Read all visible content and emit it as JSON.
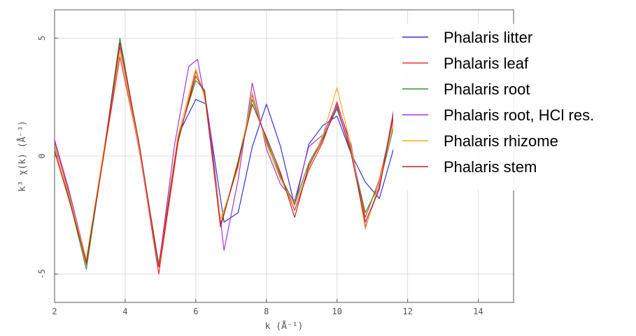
{
  "chart_data": {
    "type": "line",
    "xlabel": "k (Å⁻¹)",
    "ylabel": "k³ χ(k) (Å⁻³)",
    "xlim": [
      2,
      15
    ],
    "ylim": [
      -6.2,
      6.2
    ],
    "x_ticks": [
      "2",
      "4",
      "6",
      "8",
      "10",
      "12",
      "14"
    ],
    "x_tick_values": [
      2,
      4,
      6,
      8,
      10,
      12,
      14
    ],
    "y_ticks": [
      "5",
      "0",
      "-5"
    ],
    "y_tick_values": [
      5,
      0,
      -5
    ],
    "grid": true,
    "legend_position": "top-right",
    "series": [
      {
        "name": "Phalaris litter",
        "color": "#3333dd",
        "x": [
          2.0,
          2.4,
          2.9,
          3.4,
          3.85,
          4.4,
          4.95,
          5.5,
          6.0,
          6.3,
          6.8,
          7.2,
          7.6,
          8.0,
          8.4,
          8.8,
          9.2,
          9.6,
          10.0,
          10.4,
          10.8,
          11.2,
          11.6
        ],
        "y": [
          0.3,
          -1.6,
          -4.5,
          0.2,
          4.5,
          0.4,
          -4.6,
          0.9,
          2.4,
          2.2,
          -2.8,
          -2.4,
          0.4,
          2.2,
          0.4,
          -2.1,
          0.5,
          1.3,
          1.7,
          0.1,
          -1.1,
          -1.8,
          0.3
        ]
      },
      {
        "name": "Phalaris leaf",
        "color": "#ee3333",
        "x": [
          2.0,
          2.4,
          2.9,
          3.4,
          3.85,
          4.4,
          4.95,
          5.5,
          6.0,
          6.25,
          6.7,
          7.2,
          7.6,
          8.0,
          8.4,
          8.8,
          9.2,
          9.6,
          10.0,
          10.4,
          10.8,
          11.2,
          11.6
        ],
        "y": [
          0.6,
          -1.5,
          -4.6,
          0.1,
          4.2,
          0.3,
          -5.0,
          0.6,
          3.6,
          2.6,
          -2.9,
          -0.4,
          2.6,
          0.6,
          -0.8,
          -2.3,
          -0.6,
          0.6,
          2.3,
          0.3,
          -2.6,
          -1.0,
          1.6
        ]
      },
      {
        "name": "Phalaris root",
        "color": "#339933",
        "x": [
          2.0,
          2.4,
          2.9,
          3.4,
          3.85,
          4.4,
          4.95,
          5.5,
          6.0,
          6.25,
          6.7,
          7.2,
          7.6,
          8.0,
          8.4,
          8.8,
          9.2,
          9.6,
          10.0,
          10.4,
          10.8,
          11.2,
          11.6
        ],
        "y": [
          0.4,
          -1.7,
          -4.8,
          0.2,
          5.0,
          0.4,
          -4.6,
          0.8,
          3.2,
          2.8,
          -3.0,
          -0.2,
          2.4,
          0.7,
          -0.9,
          -2.0,
          -0.3,
          0.8,
          2.0,
          0.2,
          -2.4,
          -1.2,
          1.2
        ]
      },
      {
        "name": "Phalaris root, HCl res.",
        "color": "#aa33dd",
        "x": [
          2.0,
          2.4,
          2.9,
          3.4,
          3.85,
          4.4,
          4.95,
          5.4,
          5.8,
          6.05,
          6.4,
          6.8,
          7.2,
          7.6,
          8.0,
          8.4,
          8.8,
          9.2,
          9.6,
          10.0,
          10.4,
          10.8,
          11.2,
          11.6
        ],
        "y": [
          0.7,
          -1.4,
          -4.4,
          0.3,
          4.6,
          0.2,
          -4.7,
          0.5,
          3.8,
          4.1,
          1.2,
          -4.0,
          -1.0,
          3.1,
          0.3,
          -1.2,
          -1.9,
          0.4,
          0.9,
          2.2,
          0.5,
          -3.0,
          -1.3,
          1.9
        ]
      },
      {
        "name": "Phalaris rhizome",
        "color": "#ffaa22",
        "x": [
          2.0,
          2.4,
          2.9,
          3.4,
          3.85,
          4.4,
          4.95,
          5.5,
          6.0,
          6.25,
          6.7,
          7.2,
          7.6,
          8.0,
          8.4,
          8.8,
          9.2,
          9.6,
          10.0,
          10.4,
          10.8,
          11.2,
          11.6
        ],
        "y": [
          0.3,
          -1.6,
          -4.4,
          0.3,
          4.5,
          0.3,
          -4.7,
          0.9,
          3.7,
          2.5,
          -2.7,
          -0.5,
          2.7,
          0.5,
          -1.0,
          -2.1,
          -0.5,
          0.9,
          2.9,
          0.4,
          -3.1,
          -1.1,
          1.4
        ]
      },
      {
        "name": "Phalaris stem",
        "color": "#bb2222",
        "x": [
          2.0,
          2.4,
          2.9,
          3.4,
          3.85,
          4.4,
          4.95,
          5.5,
          6.0,
          6.25,
          6.7,
          7.2,
          7.6,
          8.0,
          8.4,
          8.8,
          9.2,
          9.6,
          10.0,
          10.4,
          10.8,
          11.2,
          11.6
        ],
        "y": [
          0.2,
          -1.8,
          -4.5,
          0.1,
          4.8,
          0.5,
          -4.7,
          0.7,
          3.4,
          2.7,
          -3.0,
          -0.3,
          2.2,
          0.8,
          -0.7,
          -2.6,
          -0.4,
          0.7,
          2.1,
          0.1,
          -2.8,
          -1.4,
          1.8
        ]
      }
    ]
  }
}
